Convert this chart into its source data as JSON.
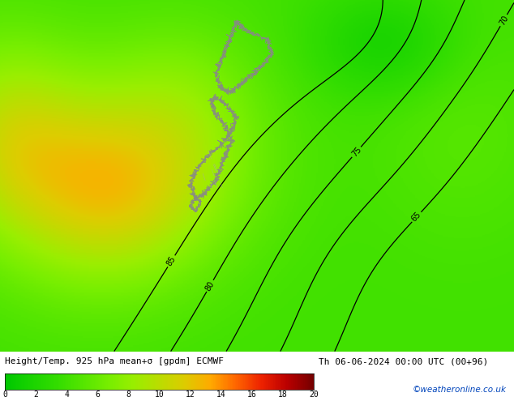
{
  "title_left": "Height/Temp. 925 hPa mean+σ [gpdm] ECMWF",
  "title_right": "Th 06-06-2024 00:00 UTC (00+96)",
  "watermark": "©weatheronline.co.uk",
  "colorbar_ticks": [
    0,
    2,
    4,
    6,
    8,
    10,
    12,
    14,
    16,
    18,
    20
  ],
  "colorbar_colors": [
    "#00c800",
    "#1ad400",
    "#33dd00",
    "#55e600",
    "#77ee00",
    "#99ee00",
    "#bbdd00",
    "#ddcc00",
    "#ffaa00",
    "#ff6600",
    "#ee2200",
    "#bb0000",
    "#770000"
  ],
  "fig_width": 6.34,
  "fig_height": 4.9,
  "dpi": 100
}
